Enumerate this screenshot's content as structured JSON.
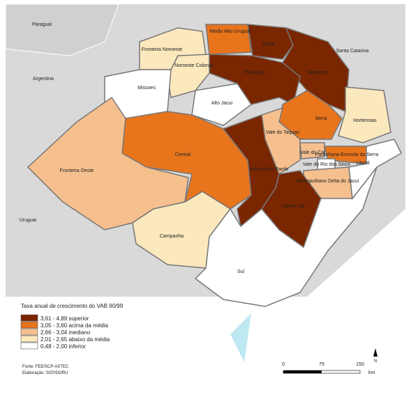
{
  "map": {
    "neighbors": [
      "Paraguai",
      "Argentina",
      "Uruguai",
      "Santa Catarina"
    ],
    "regions": [
      {
        "name": "Medio Alto Uruguai",
        "color": "#e8741c"
      },
      {
        "name": "Norte",
        "color": "#7a2600"
      },
      {
        "name": "Nordeste",
        "color": "#7a2600"
      },
      {
        "name": "Producao",
        "color": "#7a2600"
      },
      {
        "name": "Fronteira Noroeste",
        "color": "#fbe8bd"
      },
      {
        "name": "Noroeste Colonial",
        "color": "#fbe8bd"
      },
      {
        "name": "Missoes",
        "color": "#ffffff"
      },
      {
        "name": "Alto Jacui",
        "color": "#ffffff"
      },
      {
        "name": "Serra",
        "color": "#e8741c"
      },
      {
        "name": "Hortensias",
        "color": "#fbe8bd"
      },
      {
        "name": "Vale do Taquari",
        "color": "#f5bf8e"
      },
      {
        "name": "Paranhana-Encosta da Serra",
        "color": "#e8741c"
      },
      {
        "name": "Vale do Cai",
        "color": "#f5bf8e"
      },
      {
        "name": "Vale do Rio dos Sinos",
        "color": "#ffffff"
      },
      {
        "name": "Metropolitano Delta do Jacui",
        "color": "#f5bf8e"
      },
      {
        "name": "Central",
        "color": "#e8741c"
      },
      {
        "name": "Fronteira Oeste",
        "color": "#f5bf8e"
      },
      {
        "name": "Vale do Rio Pardo",
        "color": "#7a2600"
      },
      {
        "name": "Campanha",
        "color": "#fbe8bd"
      },
      {
        "name": "Centro-Sul",
        "color": "#7a2600"
      },
      {
        "name": "Sul",
        "color": "#ffffff"
      },
      {
        "name": "Litoral",
        "color": "#ffffff"
      }
    ],
    "legend": {
      "title": "Taxa anual de crescimento do VAB 90/99",
      "items": [
        {
          "label": "3,61 - 4,89 superior",
          "color": "#7a2600"
        },
        {
          "label": "3,05 - 3,60 acima da média",
          "color": "#e8741c"
        },
        {
          "label": "2,66 - 3,04 mediano",
          "color": "#f5bf8e"
        },
        {
          "label": "2,01 - 2,65 abaixo da média",
          "color": "#fbe8bd"
        },
        {
          "label": "0,48 - 2,00 inferior",
          "color": "#ffffff"
        }
      ]
    },
    "source": [
      "Fonte: FEE/SCP-ASTEC",
      "Elaboração: SCP/DORU"
    ],
    "scale": [
      "0",
      "75",
      "150",
      "km"
    ],
    "north": "N"
  }
}
